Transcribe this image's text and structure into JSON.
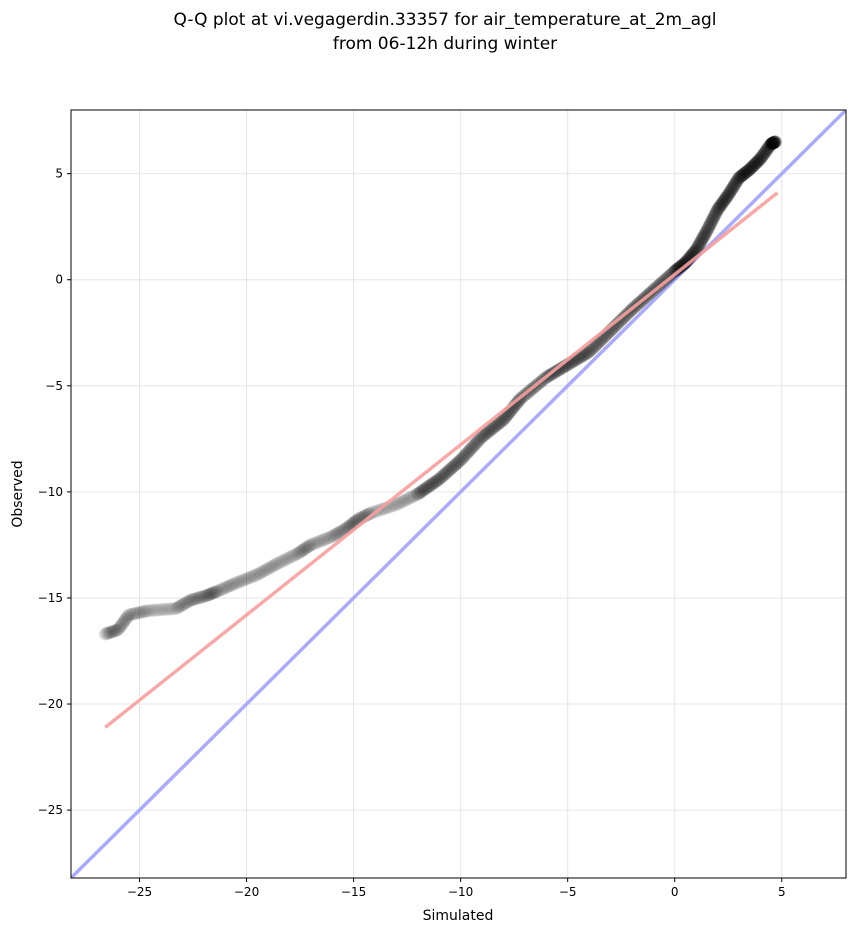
{
  "chart_data": {
    "type": "scatter",
    "title_line1": "Q-Q plot at vi.vegagerdin.33357 for air_temperature_at_2m_agl",
    "title_line2": "from 06-12h during winter",
    "xlabel": "Simulated",
    "ylabel": "Observed",
    "xlim": [
      -28.2,
      8.0
    ],
    "ylim": [
      -28.2,
      8.0
    ],
    "grid": true,
    "xticks": [
      -25,
      -20,
      -15,
      -10,
      -5,
      0,
      5
    ],
    "yticks": [
      5,
      0,
      -5,
      -10,
      -15,
      -20,
      -25
    ],
    "xtick_labels": [
      "−25",
      "−20",
      "−15",
      "−10",
      "−5",
      "0",
      "5"
    ],
    "ytick_labels": [
      "5",
      "0",
      "−5",
      "−10",
      "−15",
      "−20",
      "−25"
    ],
    "quantile_anchors": {
      "x": [
        -26.6,
        -26.0,
        -25.5,
        -24.6,
        -23.3,
        -22.6,
        -21.9,
        -21.4,
        -20.5,
        -19.5,
        -18.6,
        -17.6,
        -17.0,
        -16.0,
        -15.3,
        -14.8,
        -14.2,
        -13.0,
        -12.0,
        -11.0,
        -10.0,
        -9.0,
        -8.0,
        -7.2,
        -6.0,
        -5.0,
        -4.0,
        -3.0,
        -2.0,
        -1.0,
        0.0,
        0.5,
        1.0,
        1.5,
        2.0,
        2.5,
        3.0,
        3.5,
        4.0,
        4.5,
        4.7
      ],
      "y": [
        -16.7,
        -16.5,
        -15.8,
        -15.6,
        -15.5,
        -15.1,
        -14.9,
        -14.7,
        -14.3,
        -13.9,
        -13.4,
        -12.9,
        -12.5,
        -12.1,
        -11.7,
        -11.3,
        -11.0,
        -10.6,
        -10.1,
        -9.4,
        -8.5,
        -7.4,
        -6.6,
        -5.6,
        -4.6,
        -4.0,
        -3.4,
        -2.4,
        -1.4,
        -0.5,
        0.4,
        0.8,
        1.4,
        2.3,
        3.3,
        4.0,
        4.8,
        5.2,
        5.7,
        6.4,
        6.5
      ]
    },
    "point_count": 380,
    "series": [
      {
        "name": "",
        "kind": "quantile-points",
        "color": "#000000"
      },
      {
        "name": "",
        "kind": "fit-line",
        "color": "#f4a0a0",
        "x": [
          -26.6,
          4.8
        ],
        "y": [
          -21.1,
          4.1
        ]
      },
      {
        "name": "",
        "kind": "identity-line",
        "color": "#a6a6f5",
        "x": [
          -28.2,
          8.0
        ],
        "y": [
          -28.2,
          8.0
        ]
      }
    ]
  }
}
